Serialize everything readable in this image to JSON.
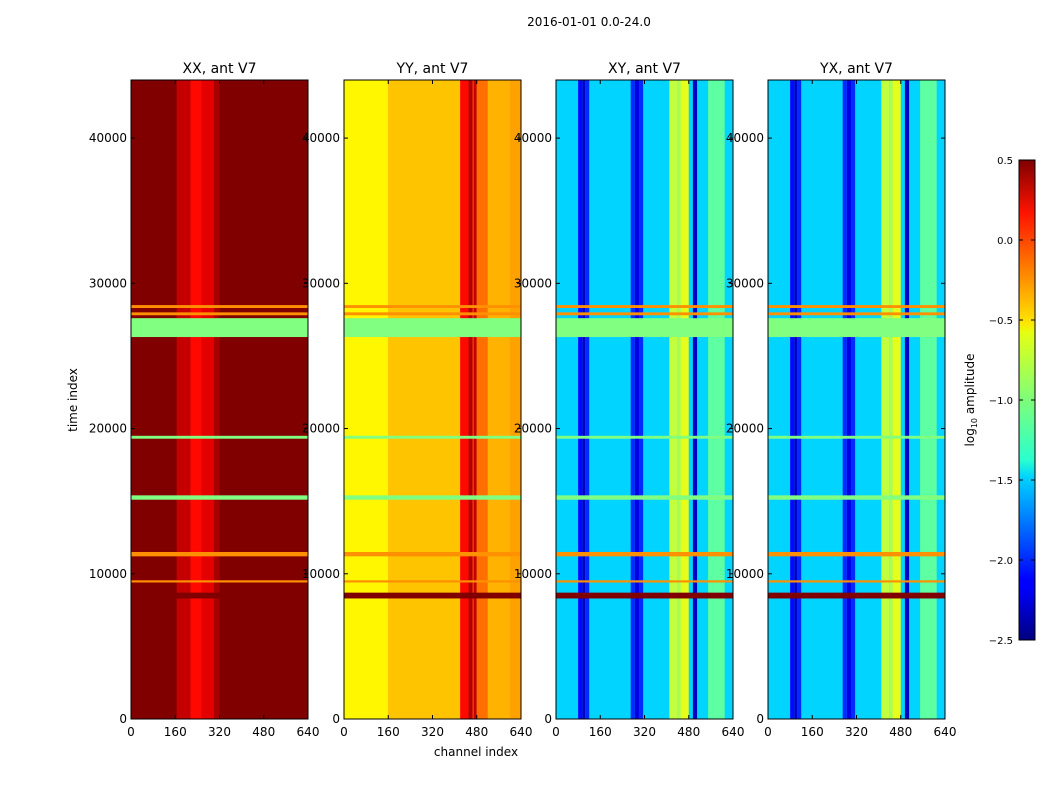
{
  "figure": {
    "suptitle": "2016-01-01 0.0-24.0",
    "xlabel": "channel index",
    "ylabel": "time index"
  },
  "colorbar": {
    "label_prefix": "log",
    "label_sub": "10",
    "label_suffix": " amplitude",
    "ticks": [
      "0.5",
      "0.0",
      "−0.5",
      "−1.0",
      "−1.5",
      "−2.0",
      "−2.5"
    ],
    "tick_values": [
      0.5,
      0.0,
      -0.5,
      -1.0,
      -1.5,
      -2.0,
      -2.5
    ],
    "range": [
      -2.5,
      0.5
    ],
    "colormap": "jet"
  },
  "chart_data": {
    "type": "heatmap",
    "x_ticks": [
      "0",
      "160",
      "320",
      "480",
      "640"
    ],
    "x_tick_values": [
      0,
      160,
      320,
      480,
      640
    ],
    "y_ticks": [
      "0",
      "10000",
      "20000",
      "30000",
      "40000"
    ],
    "y_tick_values": [
      0,
      10000,
      20000,
      30000,
      40000
    ],
    "xlim": [
      0,
      640
    ],
    "ylim": [
      0,
      44000
    ],
    "panels": [
      {
        "title": "XX, ant V7",
        "base_level": 0.5
      },
      {
        "title": "YY, ant V7",
        "base_level": -0.35
      },
      {
        "title": "XY, ant V7",
        "base_level": -1.5
      },
      {
        "title": "YX, ant V7",
        "base_level": -1.5
      }
    ],
    "flagged_rows": [
      {
        "t_start": 26300,
        "t_end": 27600,
        "level": -1.0
      },
      {
        "t_start": 27800,
        "t_end": 28000,
        "level": -0.3
      },
      {
        "t_start": 28300,
        "t_end": 28500,
        "level": -0.3
      },
      {
        "t_start": 15100,
        "t_end": 15400,
        "level": -1.0
      },
      {
        "t_start": 11200,
        "t_end": 11500,
        "level": -0.3
      },
      {
        "t_start": 9400,
        "t_end": 9550,
        "level": -0.3
      },
      {
        "t_start": 8300,
        "t_end": 8700,
        "level": 0.5
      },
      {
        "t_start": 19300,
        "t_end": 19500,
        "level": -1.0
      }
    ]
  }
}
